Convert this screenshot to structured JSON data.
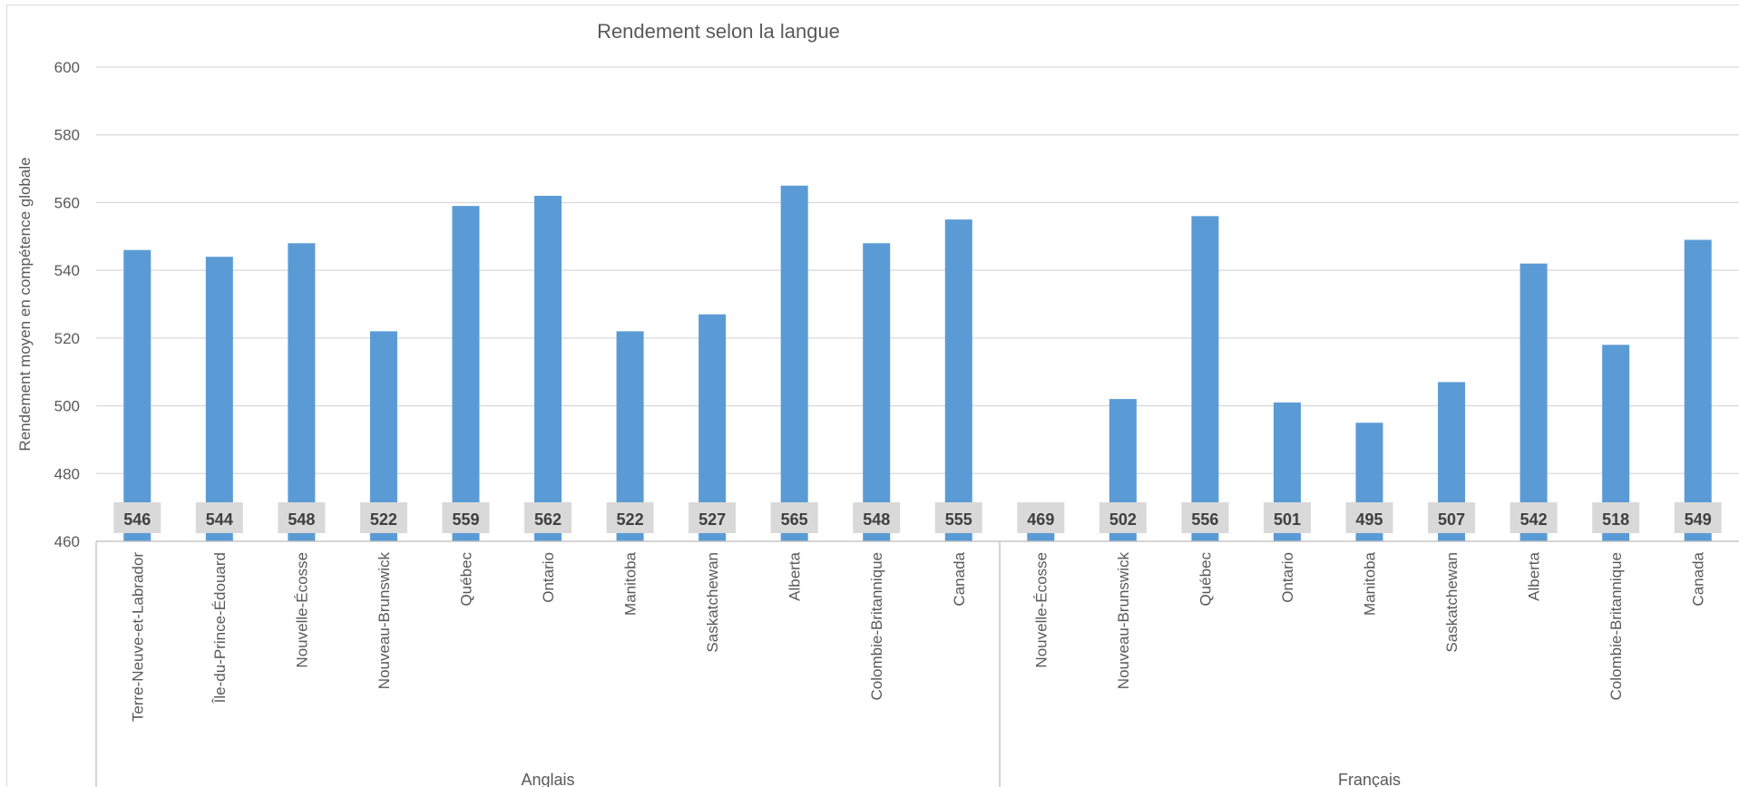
{
  "chart_data": {
    "type": "bar",
    "title": "Rendement selon la langue",
    "xlabel": "",
    "ylabel": "Rendement  moyen en compétence globale",
    "ylim": [
      460,
      600
    ],
    "yticks": [
      "460",
      "480",
      "500",
      "520",
      "540",
      "560",
      "580",
      "600"
    ],
    "grid": true,
    "legend": "none",
    "bar_color": "#5b9bd5",
    "label_bg_color": "#d9d9d9",
    "groups": [
      {
        "name": "Anglais",
        "categories": [
          "Terre-Neuve-et-Labrador",
          "Île-du-Prince-Édouard",
          "Nouvelle-Écosse",
          "Nouveau-Brunswick",
          "Québec",
          "Ontario",
          "Manitoba",
          "Saskatchewan",
          "Alberta",
          "Colombie-Britannique",
          "Canada"
        ],
        "values": [
          546,
          544,
          548,
          522,
          559,
          562,
          522,
          527,
          565,
          548,
          555
        ],
        "labels": [
          "546",
          "544",
          "548",
          "522",
          "559",
          "562",
          "522",
          "527",
          "565",
          "548",
          "555"
        ]
      },
      {
        "name": "Français",
        "categories": [
          "Nouvelle-Écosse",
          "Nouveau-Brunswick",
          "Québec",
          "Ontario",
          "Manitoba",
          "Saskatchewan",
          "Alberta",
          "Colombie-Britannique",
          "Canada"
        ],
        "values": [
          469,
          502,
          556,
          501,
          495,
          507,
          542,
          518,
          549
        ],
        "labels": [
          "469",
          "502",
          "556",
          "501",
          "495",
          "507",
          "542",
          "518",
          "549"
        ]
      }
    ]
  }
}
